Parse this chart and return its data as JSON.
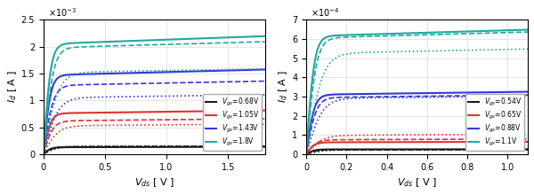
{
  "left": {
    "title_exp": "-3",
    "ylabel": "$I_d$ [ A ]",
    "xlabel": "$V_{ds}$ [ V ]",
    "xlim": [
      0,
      1.8
    ],
    "ylim": [
      0,
      0.0025
    ],
    "yticks": [
      0,
      0.0005,
      0.001,
      0.0015,
      0.002,
      0.0025
    ],
    "ytick_labels": [
      "0",
      "0.5",
      "1",
      "1.5",
      "2",
      "2.5"
    ],
    "xticks": [
      0,
      0.5,
      1.0,
      1.5
    ],
    "curves": [
      {
        "vgs": "0.68V",
        "color": "#1a1a1a",
        "I_sat_solid": 0.00013,
        "I_sat_dot": 0.000145,
        "I_sat_dash": 0.00014,
        "lambda_s": 0.035,
        "lambda_d": 0.025,
        "lambda_dash": 0.03,
        "Vds_on_s": 0.06,
        "Vds_on_d": 0.12,
        "Vds_on_dash": 0.08
      },
      {
        "vgs": "1.05V",
        "color": "#e03030",
        "I_sat_solid": 0.00076,
        "I_sat_dot": 0.00053,
        "I_sat_dash": 0.00062,
        "lambda_s": 0.04,
        "lambda_d": 0.03,
        "lambda_dash": 0.035,
        "Vds_on_s": 0.06,
        "Vds_on_d": 0.12,
        "Vds_on_dash": 0.08
      },
      {
        "vgs": "1.43V",
        "color": "#3535e0",
        "I_sat_solid": 0.00147,
        "I_sat_dot": 0.00105,
        "I_sat_dash": 0.00128,
        "lambda_s": 0.04,
        "lambda_d": 0.03,
        "lambda_dash": 0.035,
        "Vds_on_s": 0.06,
        "Vds_on_d": 0.12,
        "Vds_on_dash": 0.08
      },
      {
        "vgs": "1.8V",
        "color": "#20a8a0",
        "I_sat_solid": 0.00205,
        "I_sat_dot": 0.00152,
        "I_sat_dash": 0.00198,
        "lambda_s": 0.04,
        "lambda_d": 0.025,
        "lambda_dash": 0.032,
        "Vds_on_s": 0.06,
        "Vds_on_d": 0.12,
        "Vds_on_dash": 0.08
      }
    ],
    "Vds_max": 1.8
  },
  "right": {
    "title_exp": "-4",
    "ylabel": "$I_d$ [ A ]",
    "xlabel": "$V_{ds}$ [ V ]",
    "xlim": [
      0,
      1.1
    ],
    "ylim": [
      0,
      0.0007
    ],
    "yticks": [
      0,
      0.0001,
      0.0002,
      0.0003,
      0.0004,
      0.0005,
      0.0006,
      0.0007
    ],
    "ytick_labels": [
      "0",
      "1",
      "2",
      "3",
      "4",
      "5",
      "6",
      "7"
    ],
    "xticks": [
      0,
      0.2,
      0.4,
      0.6,
      0.8,
      1.0
    ],
    "curves": [
      {
        "vgs": "0.54V",
        "color": "#1a1a1a",
        "I_sat_solid": 2.5e-05,
        "I_sat_dot": 2.2e-05,
        "I_sat_dash": 2.3e-05,
        "lambda_s": 0.03,
        "lambda_d": 0.025,
        "lambda_dash": 0.028,
        "Vds_on_s": 0.04,
        "Vds_on_d": 0.08,
        "Vds_on_dash": 0.05
      },
      {
        "vgs": "0.65V",
        "color": "#e03030",
        "I_sat_solid": 6.2e-05,
        "I_sat_dot": 9.8e-05,
        "I_sat_dash": 7.5e-05,
        "lambda_s": 0.04,
        "lambda_d": 0.06,
        "lambda_dash": 0.05,
        "Vds_on_s": 0.04,
        "Vds_on_d": 0.08,
        "Vds_on_dash": 0.05
      },
      {
        "vgs": "0.88V",
        "color": "#3535e0",
        "I_sat_solid": 0.00031,
        "I_sat_dot": 0.00029,
        "I_sat_dash": 0.000295,
        "lambda_s": 0.045,
        "lambda_d": 0.04,
        "lambda_dash": 0.042,
        "Vds_on_s": 0.04,
        "Vds_on_d": 0.08,
        "Vds_on_dash": 0.05
      },
      {
        "vgs": "1.1V",
        "color": "#20a8a0",
        "I_sat_solid": 0.000615,
        "I_sat_dot": 0.000525,
        "I_sat_dash": 0.000605,
        "lambda_s": 0.05,
        "lambda_d": 0.04,
        "lambda_dash": 0.048,
        "Vds_on_s": 0.04,
        "Vds_on_d": 0.08,
        "Vds_on_dash": 0.05
      }
    ],
    "Vds_max": 1.1
  },
  "fig_width": 6.0,
  "fig_height": 2.2,
  "dpi": 100
}
